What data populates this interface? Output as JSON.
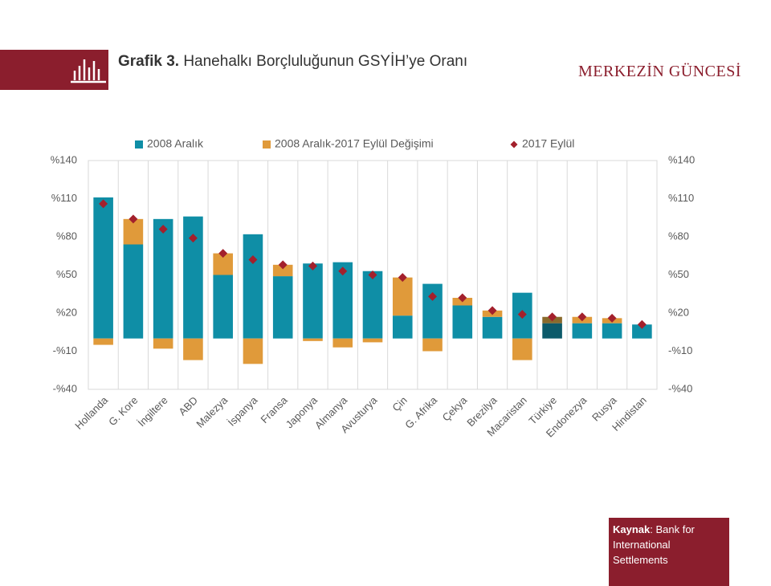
{
  "header": {
    "title_prefix": "Grafik 3.",
    "title": "Hanehalkı Borçluluğunun GSYİH’ye Oranı",
    "brand": "MERKEZİN GÜNCESİ"
  },
  "source": {
    "label": "Kaynak",
    "text": ": Bank for International Settlements"
  },
  "chart_data": {
    "type": "bar",
    "categories": [
      "Hollanda",
      "G. Kore",
      "İngiltere",
      "ABD",
      "Malezya",
      "İspanya",
      "Fransa",
      "Japonya",
      "Almanya",
      "Avusturya",
      "Çin",
      "G. Afrika",
      "Çekya",
      "Brezilya",
      "Macaristan",
      "Türkiye",
      "Endonezya",
      "Rusya",
      "Hindistan"
    ],
    "series": [
      {
        "name": "2008 Aralık",
        "color": "#0f8ea6",
        "colors": [
          "#0f8ea6",
          "#0f8ea6",
          "#0f8ea6",
          "#0f8ea6",
          "#0f8ea6",
          "#0f8ea6",
          "#0f8ea6",
          "#0f8ea6",
          "#0f8ea6",
          "#0f8ea6",
          "#0f8ea6",
          "#0f8ea6",
          "#0f8ea6",
          "#0f8ea6",
          "#0f8ea6",
          "#0c5a6a",
          "#0f8ea6",
          "#0f8ea6",
          "#0f8ea6"
        ],
        "values": [
          111,
          74,
          94,
          96,
          50,
          82,
          49,
          59,
          60,
          53,
          18,
          43,
          26,
          17,
          36,
          12,
          12,
          12,
          11
        ]
      },
      {
        "name": "2008 Aralık-2017 Eylül Değişimi",
        "color": "#e09a3a",
        "colors": [
          "#e09a3a",
          "#e09a3a",
          "#e09a3a",
          "#e09a3a",
          "#e09a3a",
          "#e09a3a",
          "#e09a3a",
          "#e09a3a",
          "#e09a3a",
          "#e09a3a",
          "#e09a3a",
          "#e09a3a",
          "#e09a3a",
          "#e09a3a",
          "#e09a3a",
          "#8a6a2c",
          "#e09a3a",
          "#e09a3a",
          "#e09a3a"
        ],
        "values": [
          -5,
          20,
          -8,
          -17,
          17,
          -20,
          9,
          -2,
          -7,
          -3,
          30,
          -10,
          6,
          5,
          -17,
          5,
          5,
          4,
          0
        ]
      },
      {
        "name": "2017 Eylül",
        "color": "#a3202c",
        "marker": "diamond",
        "values": [
          106,
          94,
          86,
          79,
          67,
          62,
          58,
          57,
          53,
          50,
          48,
          33,
          32,
          22,
          19,
          17,
          17,
          16,
          11
        ]
      }
    ],
    "ylim": [
      -40,
      140
    ],
    "yticks": [
      {
        "value": -40,
        "label": "-%40"
      },
      {
        "value": -10,
        "label": "-%10"
      },
      {
        "value": 20,
        "label": "%20"
      },
      {
        "value": 50,
        "label": "%50"
      },
      {
        "value": 80,
        "label": "%80"
      },
      {
        "value": 110,
        "label": "%110"
      },
      {
        "value": 140,
        "label": "%140"
      }
    ],
    "y2lim": [
      -40,
      140
    ],
    "y2ticks": [
      {
        "value": -40,
        "label": "-%40"
      },
      {
        "value": -10,
        "label": "-%10"
      },
      {
        "value": 20,
        "label": "%20"
      },
      {
        "value": 50,
        "label": "%50"
      },
      {
        "value": 80,
        "label": "%80"
      },
      {
        "value": 110,
        "label": "%110"
      },
      {
        "value": 140,
        "label": "%140"
      }
    ]
  }
}
